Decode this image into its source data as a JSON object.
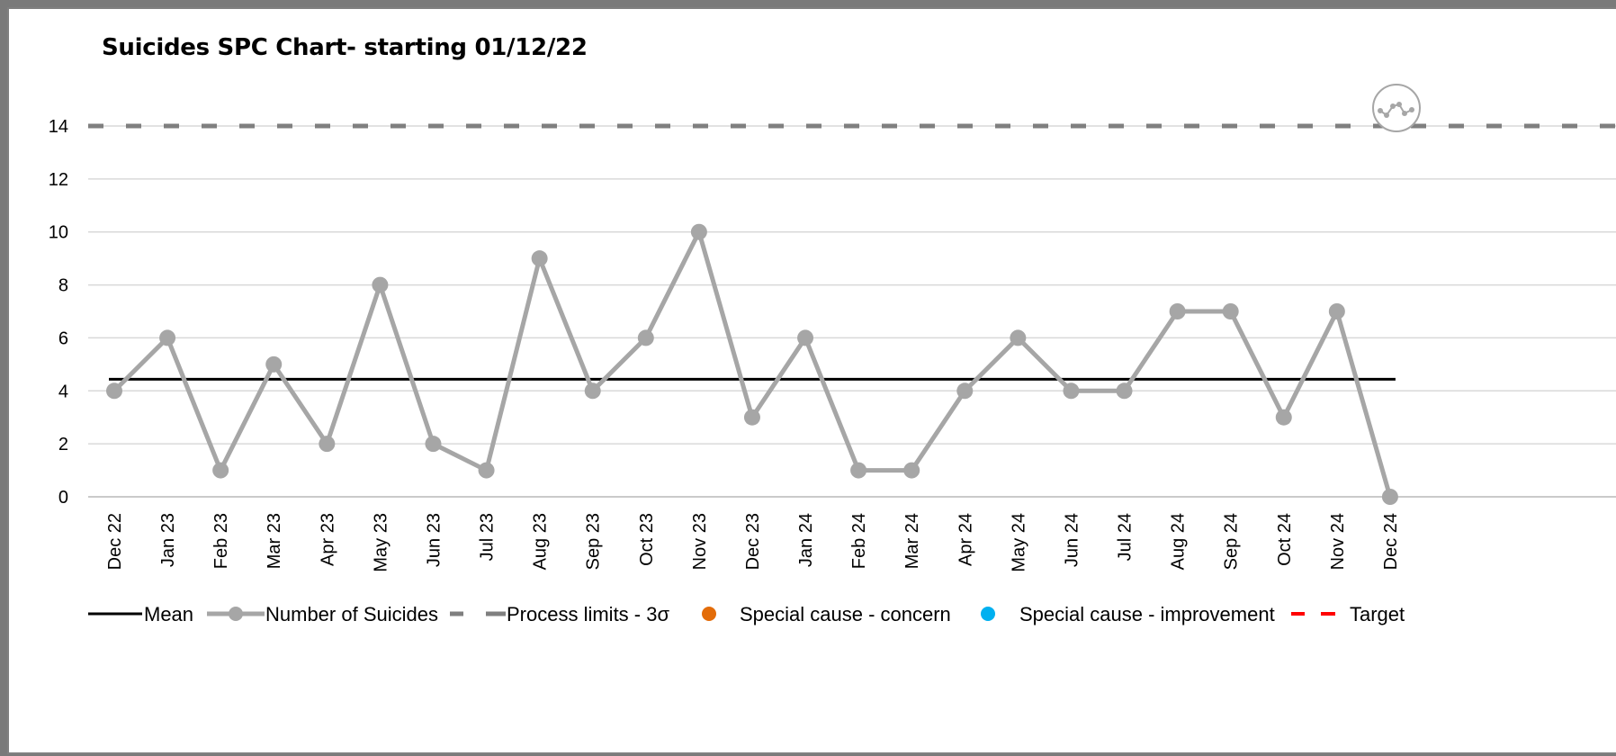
{
  "chart_data": {
    "type": "line",
    "title": "Suicides SPC Chart- starting 01/12/22",
    "categories": [
      "Dec 22",
      "Jan 23",
      "Feb 23",
      "Mar 23",
      "Apr 23",
      "May 23",
      "Jun 23",
      "Jul 23",
      "Aug 23",
      "Sep 23",
      "Oct 23",
      "Nov 23",
      "Dec 23",
      "Jan 24",
      "Feb 24",
      "Mar 24",
      "Apr 24",
      "May 24",
      "Jun 24",
      "Jul 24",
      "Aug 24",
      "Sep 24",
      "Oct 24",
      "Nov 24",
      "Dec 24"
    ],
    "series": [
      {
        "name": "Number of Suicides",
        "values": [
          4,
          6,
          1,
          5,
          2,
          8,
          2,
          1,
          9,
          4,
          6,
          10,
          3,
          6,
          1,
          1,
          4,
          6,
          4,
          4,
          7,
          7,
          3,
          7,
          0
        ],
        "color": "#a6a6a6"
      },
      {
        "name": "Mean",
        "value": 4.44,
        "color": "#000000"
      },
      {
        "name": "Process limits - 3σ",
        "upper": 14,
        "lower": null,
        "color": "#7f7f7f"
      }
    ],
    "ylim": [
      0,
      14
    ],
    "yticks": [
      0,
      2,
      4,
      6,
      8,
      10,
      12,
      14
    ],
    "grid": true,
    "legend": {
      "placement": "bottom",
      "items": [
        {
          "label": "Mean",
          "color": "#000000"
        },
        {
          "label": "Number of Suicides",
          "color": "#a6a6a6"
        },
        {
          "label": "Process limits - 3σ",
          "color": "#7f7f7f"
        },
        {
          "label": "Special cause - concern",
          "color": "#e36c09"
        },
        {
          "label": "Special cause  - improvement",
          "color": "#00b0f0"
        },
        {
          "label": "Target",
          "color": "#ff0000"
        }
      ]
    },
    "icon": "variation-common-cause-icon"
  }
}
